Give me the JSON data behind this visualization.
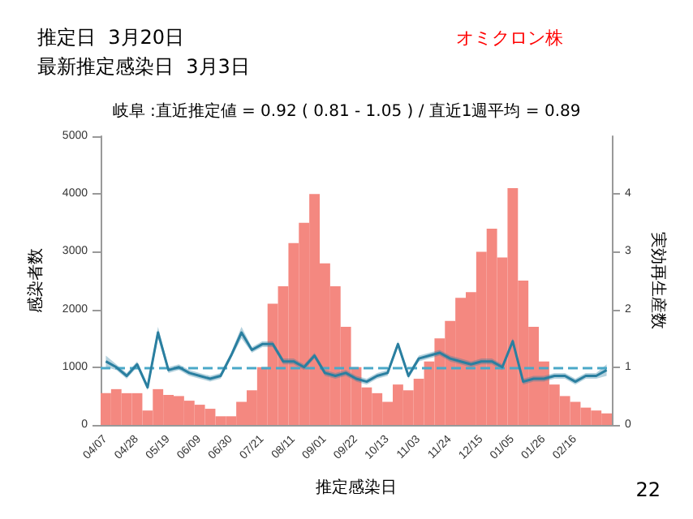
{
  "chart_data": {
    "type": "bar",
    "title": "推定日  3月20日",
    "subtitle": "最新推定感染日  3月3日",
    "annotations": [
      "オミクロン株",
      "岐阜 :直近推定値 = 0.92 ( 0.81 - 1.05 ) / 直近1週平均 = 0.89",
      "22"
    ],
    "xlabel": "推定感染日",
    "ylabel": "感染者数",
    "y2label": "実効再生産数",
    "categories": [
      "04/07",
      null,
      null,
      "04/28",
      null,
      null,
      "05/19",
      null,
      null,
      "06/09",
      null,
      null,
      "06/30",
      null,
      null,
      "07/21",
      null,
      null,
      "08/11",
      null,
      null,
      "09/01",
      null,
      null,
      "09/22",
      null,
      null,
      "10/13",
      null,
      null,
      "11/03",
      null,
      null,
      "11/24",
      null,
      null,
      "12/15",
      null,
      null,
      "01/05",
      null,
      null,
      "01/26",
      null,
      null,
      "02/16",
      null,
      null,
      null
    ],
    "series": [
      {
        "color": "#f48880",
        "values": [
          550,
          620,
          550,
          550,
          250,
          620,
          520,
          500,
          420,
          350,
          280,
          150,
          150,
          400,
          600,
          1000,
          2100,
          2400,
          3150,
          3500,
          4000,
          2800,
          2400,
          1700,
          1000,
          650,
          550,
          400,
          700,
          600,
          800,
          1100,
          1500,
          1800,
          2200,
          2300,
          3000,
          3400,
          2900,
          4100,
          2500,
          1700,
          1100,
          700,
          500,
          400,
          300,
          250,
          200
        ]
      },
      {
        "type": "line",
        "axis": "y2",
        "color": "#2a7fa0",
        "values": [
          1.1,
          1.0,
          0.85,
          1.05,
          0.65,
          1.6,
          0.95,
          1.0,
          0.9,
          0.85,
          0.8,
          0.85,
          1.2,
          1.6,
          1.3,
          1.4,
          1.4,
          1.1,
          1.1,
          1.0,
          1.2,
          0.9,
          0.85,
          0.9,
          0.8,
          0.75,
          0.85,
          0.9,
          1.4,
          0.85,
          1.15,
          1.2,
          1.25,
          1.15,
          1.1,
          1.05,
          1.1,
          1.1,
          1.0,
          1.45,
          0.75,
          0.8,
          0.8,
          0.85,
          0.85,
          0.75,
          0.85,
          0.85,
          0.95
        ],
        "lower": [
          1.0,
          0.95,
          0.8,
          1.0,
          0.6,
          1.5,
          0.9,
          0.95,
          0.85,
          0.8,
          0.75,
          0.8,
          1.15,
          1.5,
          1.25,
          1.35,
          1.35,
          1.05,
          1.05,
          0.95,
          1.15,
          0.85,
          0.8,
          0.85,
          0.75,
          0.7,
          0.8,
          0.85,
          1.35,
          0.8,
          1.1,
          1.15,
          1.2,
          1.1,
          1.05,
          1.0,
          1.05,
          1.05,
          0.95,
          1.4,
          0.7,
          0.75,
          0.75,
          0.8,
          0.8,
          0.7,
          0.8,
          0.8,
          0.85
        ],
        "upper": [
          1.2,
          1.05,
          0.9,
          1.1,
          0.7,
          1.7,
          1.0,
          1.05,
          0.95,
          0.9,
          0.85,
          0.9,
          1.25,
          1.7,
          1.35,
          1.45,
          1.45,
          1.15,
          1.15,
          1.05,
          1.25,
          0.95,
          0.9,
          0.95,
          0.85,
          0.8,
          0.9,
          0.95,
          1.45,
          0.9,
          1.2,
          1.25,
          1.3,
          1.2,
          1.15,
          1.1,
          1.15,
          1.15,
          1.05,
          1.5,
          0.8,
          0.85,
          0.85,
          0.9,
          0.9,
          0.8,
          0.9,
          0.9,
          1.05
        ]
      }
    ],
    "ylim": [
      0,
      5000
    ],
    "yticks": [
      0,
      1000,
      2000,
      3000,
      4000,
      5000
    ],
    "y2lim": [
      0,
      5
    ],
    "y2ticks": [
      0,
      1,
      2,
      3,
      4
    ],
    "ref_lines": [
      {
        "axis": "y2",
        "value": 1,
        "color": "#4aa8c8",
        "line_style": "dashed"
      }
    ],
    "grid": false,
    "marker": "none"
  }
}
